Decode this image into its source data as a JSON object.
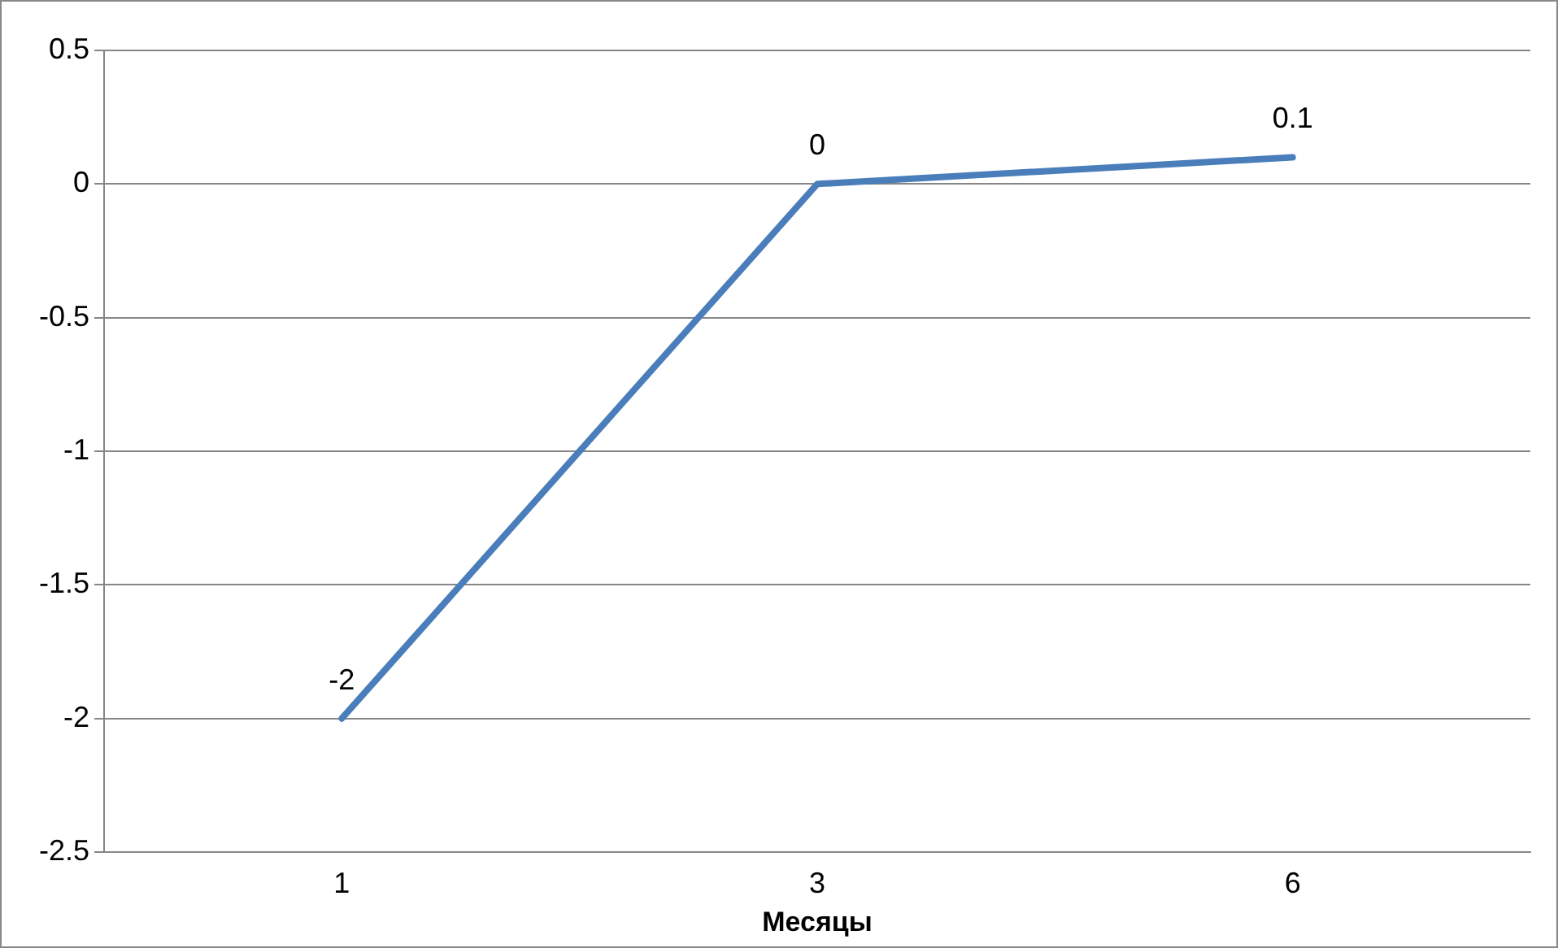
{
  "chart_data": {
    "type": "line",
    "xlabel": "Месяцы",
    "categories": [
      "1",
      "3",
      "6"
    ],
    "series": [
      {
        "color": "#4a7ebb",
        "values": [
          -2,
          0,
          0.1
        ]
      }
    ],
    "ylim": [
      -2.5,
      0.5
    ],
    "yticks": [
      -2.5,
      -2,
      -1.5,
      -1,
      -0.5,
      0,
      0.5
    ],
    "grid": "y",
    "legend": false,
    "marker": "none",
    "line_style": "solid",
    "data_labels": true
  }
}
